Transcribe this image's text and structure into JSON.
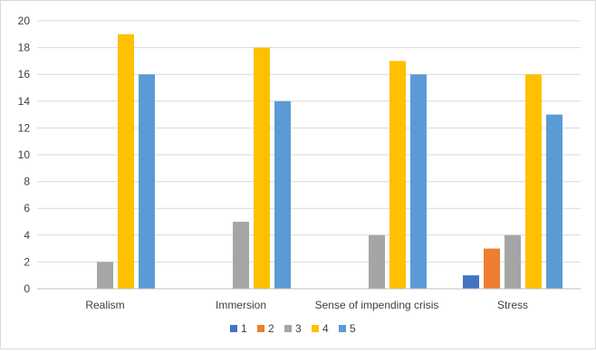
{
  "chart_data": {
    "type": "bar",
    "categories": [
      "Realism",
      "Immersion",
      "Sense of impending crisis",
      "Stress"
    ],
    "series": [
      {
        "name": "1",
        "color": "#4472c4",
        "values": [
          0,
          0,
          0,
          1
        ]
      },
      {
        "name": "2",
        "color": "#ed7d31",
        "values": [
          0,
          0,
          0,
          3
        ]
      },
      {
        "name": "3",
        "color": "#a5a5a5",
        "values": [
          2,
          5,
          4,
          4
        ]
      },
      {
        "name": "4",
        "color": "#ffc000",
        "values": [
          19,
          18,
          17,
          16
        ]
      },
      {
        "name": "5",
        "color": "#5b9bd5",
        "values": [
          16,
          14,
          16,
          13
        ]
      }
    ],
    "ylim": [
      0,
      20
    ],
    "yticks": [
      0,
      2,
      4,
      6,
      8,
      10,
      12,
      14,
      16,
      18,
      20
    ],
    "grid": true,
    "legend": "bottom",
    "title": "",
    "xlabel": "",
    "ylabel": ""
  },
  "colors": {
    "gridline": "#d9d9d9",
    "axis": "#bfbfbf",
    "text": "#404040"
  }
}
